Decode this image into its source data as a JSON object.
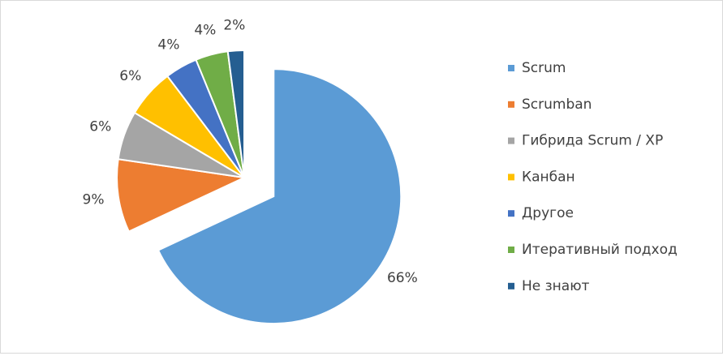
{
  "chart_data": {
    "type": "pie",
    "categories": [
      "Scrum",
      "Scrumban",
      "Гибрида Scrum / XP",
      "Канбан",
      "Другое",
      "Итеративный подход",
      "Не знают"
    ],
    "values": [
      66,
      9,
      6,
      6,
      4,
      4,
      2
    ],
    "value_labels": [
      "66%",
      "9%",
      "6%",
      "6%",
      "4%",
      "4%",
      "2%"
    ],
    "colors": [
      "#5b9bd5",
      "#ed7d31",
      "#a5a5a5",
      "#ffc000",
      "#4472c4",
      "#70ad47",
      "#255e91"
    ],
    "legend": "right"
  }
}
